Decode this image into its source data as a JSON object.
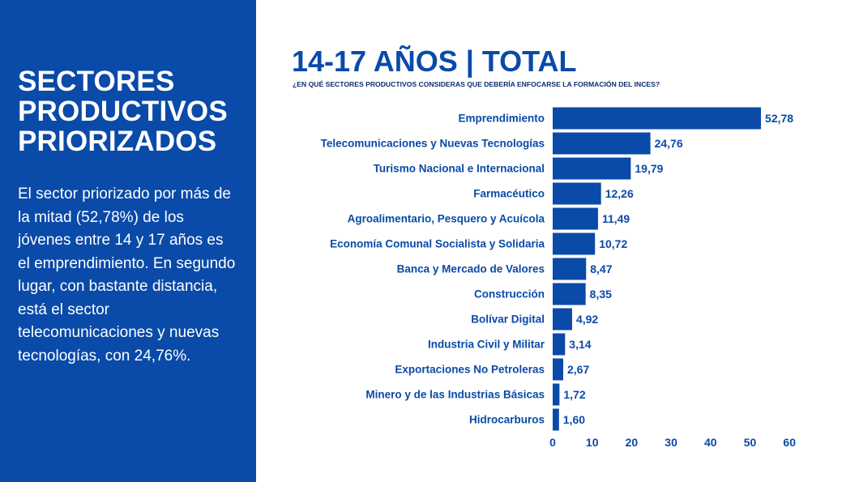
{
  "sidebar": {
    "title_lines": [
      "SECTORES",
      "PRODUCTIVOS",
      "PRIORIZADOS"
    ],
    "body": "El sector priorizado por más de la mitad (52,78%) de los jóvenes entre 14 y 17 años es el emprendimiento. En segundo lugar, con bastante distancia, está el sector telecomunicaciones y nuevas tecnologías, con 24,76%."
  },
  "header": {
    "title": "14-17 AÑOS | TOTAL",
    "subtitle": "¿EN QUÉ SECTORES PRODUCTIVOS CONSIDERAS QUE DEBERÍA ENFOCARSE LA FORMACIÓN DEL INCES?"
  },
  "colors": {
    "panel": "#0a4aa8",
    "bar": "#0a4aa8",
    "text": "#0a4aa8",
    "background": "#ffffff"
  },
  "chart_data": {
    "type": "bar",
    "orientation": "horizontal",
    "categories": [
      "Emprendimiento",
      "Telecomunicaciones y Nuevas Tecnologías",
      "Turismo Nacional e Internacional",
      "Farmacéutico",
      "Agroalimentario, Pesquero y Acuícola",
      "Economía Comunal Socialista y Solidaria",
      "Banca y Mercado de Valores",
      "Construcción",
      "Bolívar Digital",
      "Industria Civil y Militar",
      "Exportaciones No Petroleras",
      "Minero y de las Industrias Básicas",
      "Hidrocarburos"
    ],
    "values": [
      52.78,
      24.76,
      19.79,
      12.26,
      11.49,
      10.72,
      8.47,
      8.35,
      4.92,
      3.14,
      2.67,
      1.72,
      1.6
    ],
    "value_labels": [
      "52,78",
      "24,76",
      "19,79",
      "12,26",
      "11,49",
      "10,72",
      "8,47",
      "8,35",
      "4,92",
      "3,14",
      "2,67",
      "1,72",
      "1,60"
    ],
    "x_ticks": [
      "0",
      "10",
      "20",
      "30",
      "40",
      "50",
      "60"
    ],
    "xlim": [
      0,
      60
    ],
    "grid": false,
    "legend": "none"
  }
}
